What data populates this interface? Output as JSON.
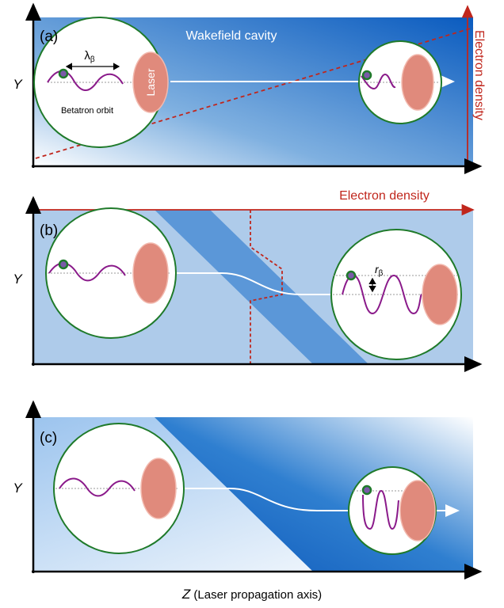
{
  "panels": [
    {
      "label": "(a)",
      "y_axis": "Y",
      "title": "Wakefield cavity",
      "wavelength": {
        "symbol": "λ",
        "sub": "β"
      },
      "orbit": "Betatron orbit",
      "laser": "Laser",
      "density": "Electron density"
    },
    {
      "label": "(b)",
      "y_axis": "Y",
      "density": "Electron density",
      "radius": {
        "symbol": "r",
        "sub": "β"
      }
    },
    {
      "label": "(c)",
      "y_axis": "Y"
    }
  ],
  "x_axis": {
    "symbol": "Z",
    "text": " (Laser propagation axis)"
  }
}
